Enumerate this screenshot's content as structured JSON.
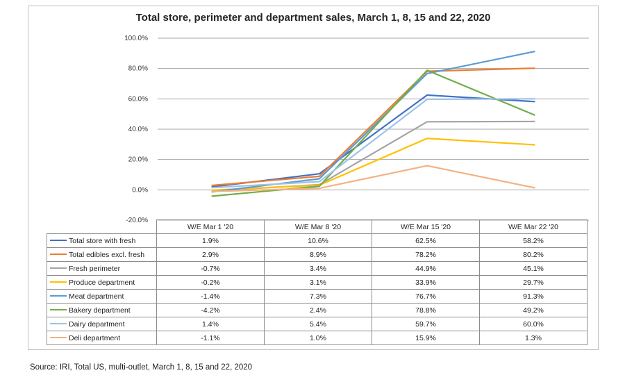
{
  "chart_data": {
    "type": "line",
    "title": "Total store, perimeter and department sales, March 1, 8, 15 and 22, 2020",
    "x": [
      "W/E Mar 1 '20",
      "W/E Mar 8 '20",
      "W/E Mar 15 '20",
      "W/E Mar 22 '20"
    ],
    "y_ticks": [
      "100.0%",
      "80.0%",
      "60.0%",
      "40.0%",
      "20.0%",
      "0.0%",
      "-20.0%"
    ],
    "ylim": [
      -20,
      100
    ],
    "grid": true,
    "legend": "data-table-below",
    "series": [
      {
        "name": "Total store with fresh",
        "color": "#4472c4",
        "values": [
          1.9,
          10.6,
          62.5,
          58.2
        ],
        "labels": [
          "1.9%",
          "10.6%",
          "62.5%",
          "58.2%"
        ]
      },
      {
        "name": "Total edibles excl. fresh",
        "color": "#ed7d31",
        "values": [
          2.9,
          8.9,
          78.2,
          80.2
        ],
        "labels": [
          "2.9%",
          "8.9%",
          "78.2%",
          "80.2%"
        ]
      },
      {
        "name": "Fresh perimeter",
        "color": "#a5a5a5",
        "values": [
          -0.7,
          3.4,
          44.9,
          45.1
        ],
        "labels": [
          "-0.7%",
          "3.4%",
          "44.9%",
          "45.1%"
        ]
      },
      {
        "name": "Produce department",
        "color": "#ffc000",
        "values": [
          -0.2,
          3.1,
          33.9,
          29.7
        ],
        "labels": [
          "-0.2%",
          "3.1%",
          "33.9%",
          "29.7%"
        ]
      },
      {
        "name": "Meat department",
        "color": "#5b9bd5",
        "values": [
          -1.4,
          7.3,
          76.7,
          91.3
        ],
        "labels": [
          "-1.4%",
          "7.3%",
          "76.7%",
          "91.3%"
        ]
      },
      {
        "name": "Bakery department",
        "color": "#70ad47",
        "values": [
          -4.2,
          2.4,
          78.8,
          49.2
        ],
        "labels": [
          "-4.2%",
          "2.4%",
          "78.8%",
          "49.2%"
        ]
      },
      {
        "name": "Dairy department",
        "color": "#9dc3e6",
        "values": [
          1.4,
          5.4,
          59.7,
          60.0
        ],
        "labels": [
          "1.4%",
          "5.4%",
          "59.7%",
          "60.0%"
        ]
      },
      {
        "name": "Deli department",
        "color": "#f4b183",
        "values": [
          -1.1,
          1.0,
          15.9,
          1.3
        ],
        "labels": [
          "-1.1%",
          "1.0%",
          "15.9%",
          "1.3%"
        ]
      }
    ]
  },
  "source": "Source: IRI, Total US, multi-outlet, March 1, 8, 15 and 22, 2020"
}
